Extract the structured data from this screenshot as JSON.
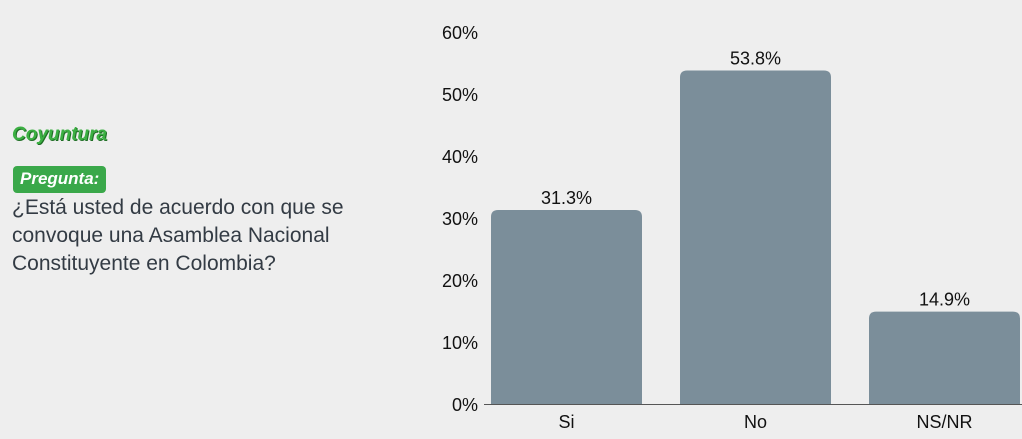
{
  "panel": {
    "section_title": "Coyuntura",
    "question_badge": "Pregunta:",
    "question_text": "¿Está usted de acuerdo con que se convoque una Asamblea Nacional Constituyente en Colombia?"
  },
  "colors": {
    "bar": "#7b8e9a",
    "section_title": "#3cb043",
    "badge_bg": "#3aa84a",
    "background": "#eeeeee"
  },
  "chart_data": {
    "type": "bar",
    "categories": [
      "Si",
      "No",
      "NS/NR"
    ],
    "values": [
      31.3,
      53.8,
      14.9
    ],
    "value_labels": [
      "31.3%",
      "53.8%",
      "14.9%"
    ],
    "yticks": [
      "0%",
      "10%",
      "20%",
      "30%",
      "40%",
      "50%",
      "60%"
    ],
    "ylim": [
      0,
      60
    ],
    "title": "",
    "xlabel": "",
    "ylabel": "",
    "grid": false,
    "legend": "none"
  }
}
